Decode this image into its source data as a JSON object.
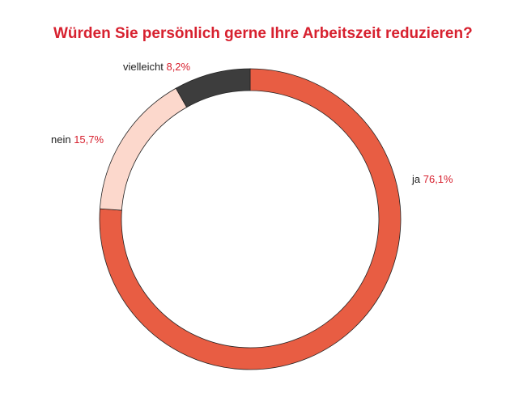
{
  "chart_data": {
    "type": "pie",
    "style": "donut",
    "title": "Würden Sie persönlich gerne Ihre Arbeitszeit reduzieren?",
    "slices": [
      {
        "label": "ja",
        "value": 76.1,
        "value_label": "76,1%",
        "color": "#e85d43"
      },
      {
        "label": "nein",
        "value": 15.7,
        "value_label": "15,7%",
        "color": "#fcd8cc"
      },
      {
        "label": "vielleicht",
        "value": 8.2,
        "value_label": "8,2%",
        "color": "#3d3d3d"
      }
    ]
  },
  "colors": {
    "title": "#d7212f",
    "value_text": "#d7212f",
    "label_text": "#222222",
    "outline": "#222222"
  }
}
